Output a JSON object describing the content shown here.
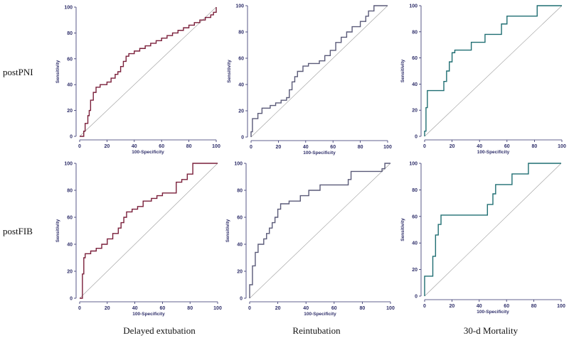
{
  "row_labels": [
    "postPNI",
    "postFIB"
  ],
  "column_labels": [
    "Delayed extubation",
    "Reintubation",
    "30-d Mortality"
  ],
  "colors": {
    "delayed": "#7a1f3a",
    "reint": "#5a5a78",
    "mort": "#1f6e72",
    "axis": "#2f2f6a",
    "diagonal": "#9a9a9a"
  },
  "chart_data": [
    {
      "type": "line",
      "xlabel": "100-Specificity",
      "ylabel": "Sensitivity",
      "xlim": [
        0,
        100
      ],
      "ylim": [
        0,
        100
      ],
      "xticks": [
        "0",
        "20",
        "40",
        "60",
        "80",
        "100"
      ],
      "yticks": [
        "0",
        "20",
        "40",
        "60",
        "80",
        "100"
      ],
      "reference_line": "diagonal",
      "color_key": "delayed",
      "x": [
        0,
        3,
        3,
        4,
        4,
        6,
        6,
        7,
        7,
        8,
        8,
        10,
        10,
        12,
        12,
        15,
        15,
        20,
        20,
        23,
        23,
        26,
        26,
        28,
        28,
        30,
        30,
        32,
        32,
        34,
        34,
        36,
        36,
        40,
        40,
        44,
        44,
        48,
        48,
        52,
        52,
        56,
        56,
        60,
        60,
        64,
        64,
        68,
        68,
        72,
        72,
        76,
        76,
        80,
        80,
        84,
        84,
        88,
        88,
        92,
        92,
        96,
        96,
        98,
        98,
        100,
        100
      ],
      "y": [
        0,
        0,
        4,
        4,
        10,
        10,
        16,
        16,
        20,
        20,
        28,
        28,
        34,
        34,
        38,
        38,
        40,
        40,
        42,
        42,
        45,
        45,
        48,
        48,
        50,
        50,
        54,
        54,
        58,
        58,
        62,
        62,
        64,
        64,
        66,
        66,
        68,
        68,
        70,
        70,
        72,
        72,
        74,
        74,
        76,
        76,
        78,
        78,
        80,
        80,
        82,
        82,
        84,
        84,
        86,
        86,
        88,
        88,
        90,
        90,
        92,
        92,
        94,
        94,
        96,
        96,
        100
      ]
    },
    {
      "type": "line",
      "xlabel": "100-Specificity",
      "ylabel": "Sensitivity",
      "xlim": [
        0,
        100
      ],
      "ylim": [
        0,
        100
      ],
      "xticks": [
        "0",
        "20",
        "40",
        "60",
        "80",
        "100"
      ],
      "yticks": [
        "0",
        "20",
        "40",
        "60",
        "80",
        "100"
      ],
      "reference_line": "diagonal",
      "color_key": "reint",
      "x": [
        0,
        0,
        1,
        1,
        5,
        5,
        8,
        8,
        14,
        14,
        18,
        18,
        22,
        22,
        26,
        26,
        28,
        28,
        30,
        30,
        32,
        32,
        34,
        34,
        38,
        38,
        42,
        42,
        50,
        50,
        54,
        54,
        58,
        58,
        62,
        62,
        66,
        66,
        70,
        70,
        74,
        74,
        80,
        80,
        84,
        84,
        86,
        86,
        90,
        90,
        100
      ],
      "y": [
        0,
        4,
        4,
        14,
        14,
        18,
        18,
        22,
        22,
        24,
        24,
        26,
        26,
        28,
        28,
        30,
        30,
        36,
        36,
        42,
        42,
        46,
        46,
        50,
        50,
        54,
        54,
        56,
        56,
        58,
        58,
        62,
        62,
        66,
        66,
        72,
        72,
        76,
        76,
        80,
        80,
        84,
        84,
        88,
        88,
        92,
        92,
        96,
        96,
        100,
        100
      ]
    },
    {
      "type": "line",
      "xlabel": "100-Specificity",
      "ylabel": "Sensitivity",
      "xlim": [
        0,
        100
      ],
      "ylim": [
        0,
        100
      ],
      "xticks": [
        "0",
        "20",
        "40",
        "60",
        "80",
        "100"
      ],
      "yticks": [
        "0",
        "20",
        "40",
        "60",
        "80",
        "100"
      ],
      "reference_line": "diagonal",
      "color_key": "mort",
      "x": [
        0,
        0,
        1,
        1,
        2,
        2,
        14,
        14,
        16,
        16,
        18,
        18,
        20,
        20,
        22,
        22,
        34,
        34,
        44,
        44,
        56,
        56,
        60,
        60,
        82,
        82,
        100
      ],
      "y": [
        0,
        4,
        4,
        22,
        22,
        35,
        35,
        42,
        42,
        50,
        50,
        57,
        57,
        64,
        64,
        66,
        66,
        72,
        72,
        78,
        78,
        86,
        86,
        92,
        92,
        100,
        100
      ]
    },
    {
      "type": "line",
      "xlabel": "100-Specificity",
      "ylabel": "Sensitivity",
      "xlim": [
        0,
        100
      ],
      "ylim": [
        0,
        100
      ],
      "xticks": [
        "0",
        "20",
        "40",
        "60",
        "80",
        "100"
      ],
      "yticks": [
        "0",
        "20",
        "40",
        "60",
        "80",
        "100"
      ],
      "reference_line": "diagonal",
      "color_key": "delayed",
      "x": [
        0,
        2,
        2,
        3,
        3,
        4,
        4,
        8,
        8,
        12,
        12,
        16,
        16,
        20,
        20,
        24,
        24,
        28,
        28,
        30,
        30,
        32,
        32,
        34,
        34,
        38,
        38,
        42,
        42,
        46,
        46,
        52,
        52,
        56,
        56,
        60,
        60,
        70,
        70,
        74,
        74,
        78,
        78,
        82,
        82,
        100
      ],
      "y": [
        0,
        0,
        18,
        18,
        30,
        30,
        33,
        33,
        35,
        35,
        37,
        37,
        40,
        40,
        44,
        44,
        48,
        48,
        52,
        52,
        56,
        56,
        60,
        60,
        64,
        64,
        66,
        66,
        68,
        68,
        72,
        72,
        74,
        74,
        76,
        76,
        78,
        78,
        86,
        86,
        88,
        88,
        92,
        92,
        100,
        100
      ]
    },
    {
      "type": "line",
      "xlabel": "100-Specificity",
      "ylabel": "Sensitivity",
      "xlim": [
        0,
        100
      ],
      "ylim": [
        0,
        100
      ],
      "xticks": [
        "0",
        "20",
        "40",
        "60",
        "80",
        "100"
      ],
      "yticks": [
        "0",
        "20",
        "40",
        "60",
        "80",
        "100"
      ],
      "reference_line": "diagonal",
      "color_key": "reint",
      "x": [
        0,
        0,
        2,
        2,
        4,
        4,
        6,
        6,
        10,
        10,
        12,
        12,
        14,
        14,
        16,
        16,
        18,
        18,
        20,
        20,
        22,
        22,
        28,
        28,
        36,
        36,
        42,
        42,
        50,
        50,
        70,
        70,
        72,
        72,
        94,
        94,
        96,
        96,
        100
      ],
      "y": [
        0,
        10,
        10,
        24,
        24,
        34,
        34,
        40,
        40,
        44,
        44,
        48,
        48,
        52,
        52,
        56,
        56,
        60,
        60,
        66,
        66,
        70,
        70,
        72,
        72,
        76,
        76,
        80,
        80,
        84,
        84,
        88,
        88,
        94,
        94,
        96,
        96,
        100,
        100
      ]
    },
    {
      "type": "line",
      "xlabel": "100-Specificity",
      "ylabel": "Sensitivity",
      "xlim": [
        0,
        100
      ],
      "ylim": [
        0,
        100
      ],
      "xticks": [
        "0",
        "20",
        "40",
        "60",
        "80",
        "100"
      ],
      "yticks": [
        "0",
        "20",
        "40",
        "60",
        "80",
        "100"
      ],
      "reference_line": "diagonal",
      "color_key": "mort",
      "x": [
        0,
        0,
        6,
        6,
        8,
        8,
        10,
        10,
        12,
        12,
        46,
        46,
        50,
        50,
        52,
        52,
        64,
        64,
        76,
        76,
        100
      ],
      "y": [
        0,
        15,
        15,
        30,
        30,
        46,
        46,
        54,
        54,
        61,
        61,
        69,
        69,
        77,
        77,
        84,
        84,
        92,
        92,
        100,
        100
      ]
    }
  ]
}
